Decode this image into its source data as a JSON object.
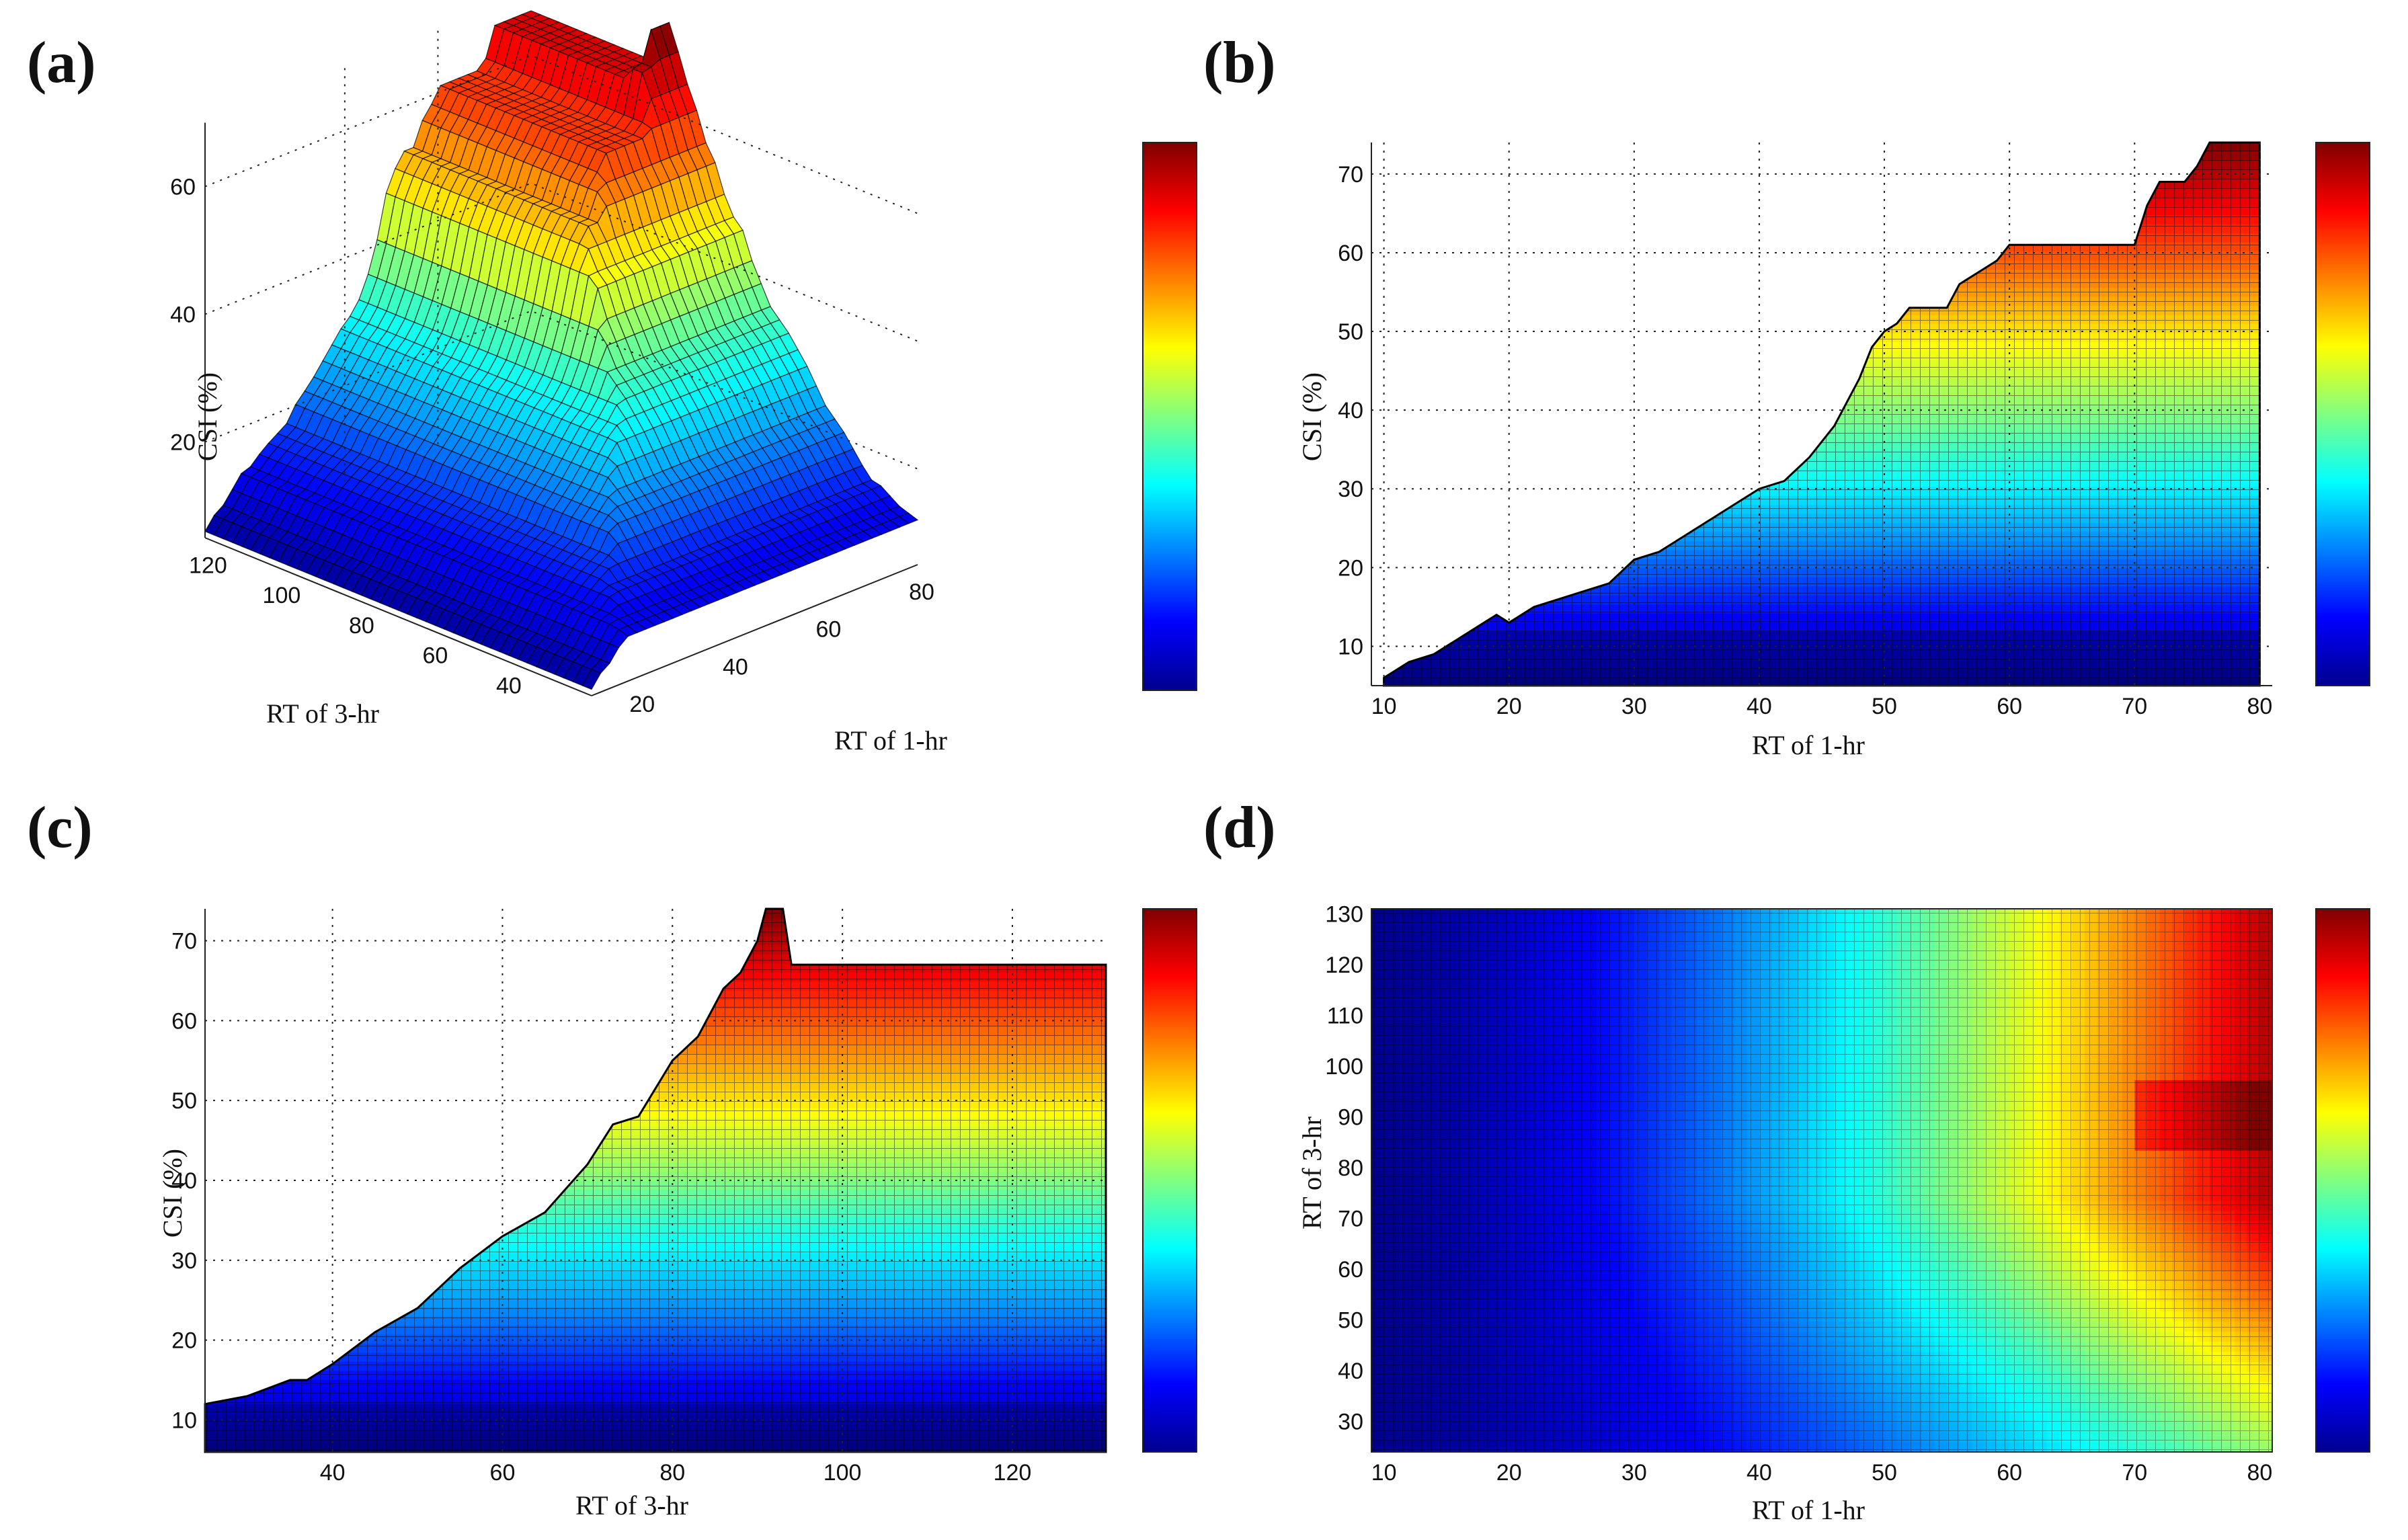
{
  "colormap": [
    "#00008f",
    "#0000ff",
    "#0080ff",
    "#00ffff",
    "#80ff80",
    "#ffff00",
    "#ff8000",
    "#ff0000",
    "#800000"
  ],
  "chart_data": [
    {
      "id": "a",
      "panel_label": "(a)",
      "type": "surface3d",
      "xlabel": "RT of 1-hr",
      "ylabel": "RT of 3-hr",
      "zlabel": "CSI (%)",
      "xticks": [
        20,
        40,
        60,
        80
      ],
      "yticks": [
        40,
        60,
        80,
        100,
        120
      ],
      "zticks": [
        20,
        40,
        60
      ],
      "xlim": [
        10,
        80
      ],
      "ylim": [
        25,
        130
      ],
      "zlim": [
        5,
        73
      ]
    },
    {
      "id": "b",
      "panel_label": "(b)",
      "type": "area",
      "xlabel": "RT of 1-hr",
      "ylabel": "CSI (%)",
      "xlim": [
        9,
        81
      ],
      "ylim": [
        5,
        74
      ],
      "xticks": [
        10,
        20,
        30,
        40,
        50,
        60,
        70,
        80
      ],
      "yticks": [
        10,
        20,
        30,
        40,
        50,
        60,
        70
      ],
      "floor": 12,
      "x": [
        10,
        12,
        14,
        16,
        18,
        19,
        20,
        22,
        24,
        26,
        28,
        30,
        32,
        34,
        36,
        38,
        40,
        42,
        44,
        46,
        48,
        49,
        50,
        51,
        52,
        54,
        55,
        56,
        58,
        59,
        60,
        62,
        64,
        66,
        68,
        69,
        70,
        71,
        72,
        74,
        75,
        76,
        78,
        80
      ],
      "y": [
        6,
        8,
        9,
        11,
        13,
        14,
        13,
        15,
        16,
        17,
        18,
        21,
        22,
        24,
        26,
        28,
        30,
        31,
        34,
        38,
        44,
        48,
        50,
        51,
        53,
        53,
        53,
        56,
        58,
        59,
        61,
        61,
        61,
        61,
        61,
        61,
        61,
        66,
        69,
        69,
        71,
        74,
        74,
        74
      ]
    },
    {
      "id": "c",
      "panel_label": "(c)",
      "type": "area",
      "xlabel": "RT of 3-hr",
      "ylabel": "CSI (%)",
      "xlim": [
        25,
        131
      ],
      "ylim": [
        6,
        74
      ],
      "xticks": [
        40,
        60,
        80,
        100,
        120
      ],
      "yticks": [
        10,
        20,
        30,
        40,
        50,
        60,
        70
      ],
      "floor": 12,
      "x": [
        25,
        30,
        35,
        37,
        40,
        45,
        50,
        55,
        60,
        65,
        70,
        73,
        76,
        80,
        83,
        86,
        88,
        90,
        91,
        92,
        93,
        94,
        96,
        100,
        110,
        120,
        131
      ],
      "y": [
        12,
        13,
        15,
        15,
        17,
        21,
        24,
        29,
        33,
        36,
        42,
        47,
        48,
        55,
        58,
        64,
        66,
        70,
        74,
        74,
        74,
        67,
        67,
        67,
        67,
        67,
        67
      ]
    },
    {
      "id": "d",
      "panel_label": "(d)",
      "type": "heatmap",
      "xlabel": "RT of 1-hr",
      "ylabel": "RT of 3-hr",
      "xlim": [
        9,
        81
      ],
      "ylim": [
        24,
        131
      ],
      "xticks": [
        10,
        20,
        30,
        40,
        50,
        60,
        70,
        80
      ],
      "yticks": [
        30,
        40,
        50,
        60,
        70,
        80,
        90,
        100,
        110,
        120,
        130
      ]
    }
  ]
}
